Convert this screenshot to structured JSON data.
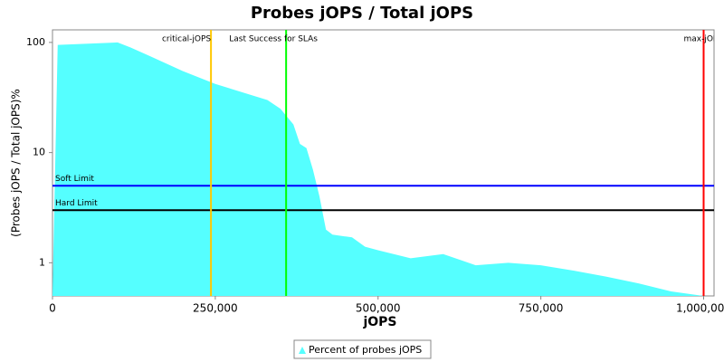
{
  "chart_data": {
    "type": "area",
    "title": "Probes jOPS / Total jOPS",
    "xlabel": "jOPS",
    "ylabel": "(Probes jOPS / Total jOPS)%",
    "log_y": true,
    "xlim": [
      0,
      1016000
    ],
    "ylim": [
      0.5,
      130
    ],
    "xticks": [
      0,
      {
        "value": 250000,
        "label": "250,000"
      },
      {
        "value": 500000,
        "label": "500,000"
      },
      {
        "value": 750000,
        "label": "750,000"
      },
      {
        "value": 1000000,
        "label": "1,000,000"
      }
    ],
    "yticks": [
      1,
      10,
      100
    ],
    "series": [
      {
        "name": "Percent of probes jOPS",
        "color": "#55ffff",
        "x": [
          0,
          8000,
          100000,
          120000,
          150000,
          200000,
          250000,
          300000,
          330000,
          350000,
          370000,
          380000,
          390000,
          400000,
          410000,
          420000,
          430000,
          460000,
          480000,
          500000,
          550000,
          600000,
          650000,
          700000,
          750000,
          800000,
          850000,
          900000,
          950000,
          1000000
        ],
        "values": [
          0.5,
          95,
          100,
          90,
          75,
          55,
          42,
          34,
          30,
          25,
          18,
          12,
          11,
          7,
          4,
          2,
          1.8,
          1.7,
          1.4,
          1.3,
          1.1,
          1.2,
          0.95,
          1.0,
          0.95,
          0.85,
          0.75,
          0.65,
          0.55,
          0.5
        ]
      }
    ],
    "vlines": [
      {
        "label": "critical-jOPS",
        "value": 243400,
        "color": "#ffc800"
      },
      {
        "label": "Last Success for SLAs",
        "value": 358800,
        "color": "#00ff00"
      },
      {
        "label": "max-jOPS",
        "value": 1000000,
        "color": "#ff0000"
      }
    ],
    "hlines": [
      {
        "label": "Soft Limit",
        "value": 5,
        "color": "#0000ff"
      },
      {
        "label": "Hard Limit",
        "value": 3,
        "color": "#000000"
      }
    ]
  }
}
